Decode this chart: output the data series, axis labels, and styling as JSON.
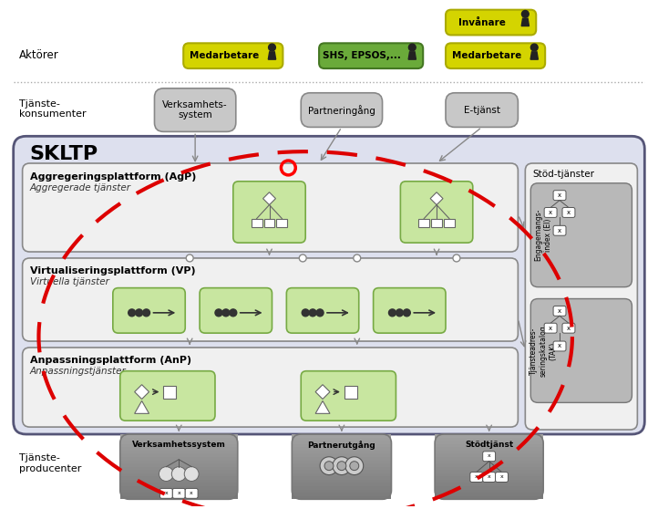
{
  "bg": "#ffffff",
  "fig_w": 7.22,
  "fig_h": 5.58,
  "dpi": 100,
  "border_color": "#555555",
  "actor_label": "Aktörer",
  "consumer_label": "Tjänste-\nkonsumenter",
  "producer_label": "Tjänste-\nproducenter",
  "skltp_label": "SKLTP",
  "stod_label": "Stöd-tjänster",
  "agp_label": "Aggregeringsplattform (AgP)",
  "agp_sub": "Aggregerade tjänster",
  "vp_label": "Virtualiseringsplattform (VP)",
  "vp_sub": "Virtuella tjänster",
  "anp_label": "Anpassningsplattform (AnP)",
  "anp_sub": "Anpassningstjänster",
  "ei_label": "Engagemangs-\nindex (EI)",
  "tak_label": "Tjänsteadres-\nseringskatalog\n(TAK)",
  "actor_yellow": "#d4d400",
  "actor_green": "#6aaa3a",
  "actor_border_yellow": "#aaaa00",
  "actor_border_green": "#447722",
  "consumer_fill": "#c8c8c8",
  "consumer_border": "#888888",
  "skltp_fill": "#dde0ee",
  "skltp_border": "#555577",
  "inner_fill": "#f0f0f0",
  "inner_border": "#888888",
  "green_fill": "#c8e6a0",
  "green_border": "#77aa44",
  "stod_fill": "#c8c8c8",
  "stod_border": "#888888",
  "producer_fill": "#aaaaaa",
  "producer_border": "#777777",
  "red_dash": "#dd0000",
  "arrow_color": "#888888",
  "text_dark": "#000000",
  "text_gray": "#444444"
}
